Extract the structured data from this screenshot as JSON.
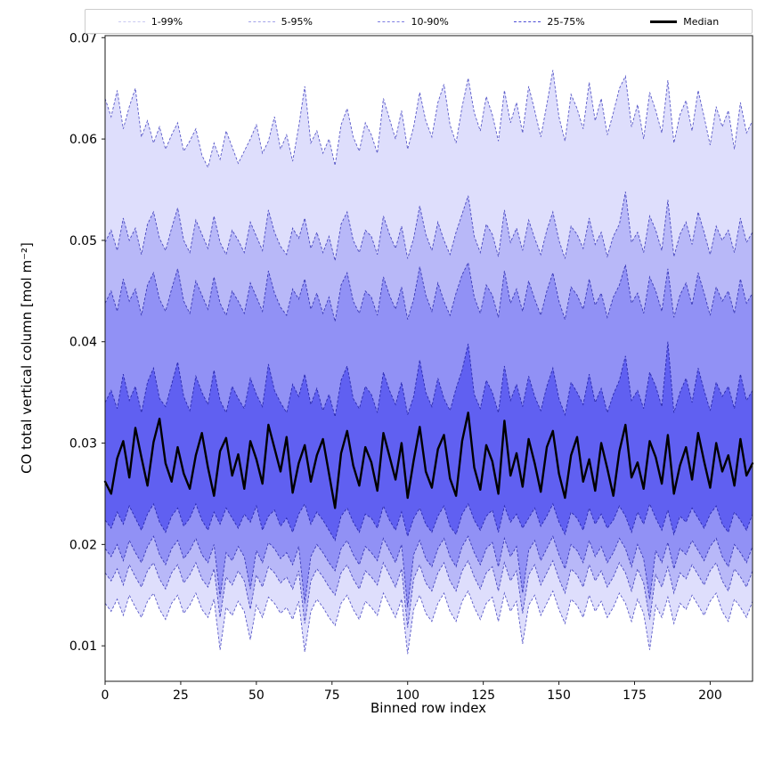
{
  "figure": {
    "background": "#ffffff"
  },
  "legend": {
    "entries": [
      {
        "label": "1-99%",
        "line_color": "#c9c9f2",
        "line_style": "dashed",
        "line_width": 1
      },
      {
        "label": "5-95%",
        "line_color": "#a3a3ea",
        "line_style": "dashed",
        "line_width": 1
      },
      {
        "label": "10-90%",
        "line_color": "#7d7de1",
        "line_style": "dashed",
        "line_width": 1
      },
      {
        "label": "25-75%",
        "line_color": "#4d4dd6",
        "line_style": "dashed",
        "line_width": 1
      },
      {
        "label": "Median",
        "line_color": "#000000",
        "line_style": "solid",
        "line_width": 3
      }
    ]
  },
  "chart_data": {
    "type": "area",
    "title": "",
    "xlabel": "Binned row index",
    "ylabel": "CO total vertical column [mol m⁻²]",
    "xlim": [
      0,
      214
    ],
    "ylim": [
      0.0065,
      0.0702
    ],
    "xticks": [
      0,
      25,
      50,
      75,
      100,
      125,
      150,
      175,
      200
    ],
    "yticks": [
      0.01,
      0.02,
      0.03,
      0.04,
      0.05,
      0.06,
      0.07
    ],
    "ytick_labels": [
      "0.01",
      "0.02",
      "0.03",
      "0.04",
      "0.05",
      "0.06",
      "0.07"
    ],
    "x_start": 0,
    "x_step": 2,
    "x_count": 108,
    "grid": false,
    "legend_position": "top",
    "band_fill_color": "48,48,238",
    "bands": [
      {
        "name": "1-99%",
        "upper": "p99",
        "lower": "p01",
        "fill_alpha": 0.16,
        "edge_color": "#5a5ac8"
      },
      {
        "name": "5-95%",
        "upper": "p95",
        "lower": "p05",
        "fill_alpha": 0.22,
        "edge_color": "#4a4ac0"
      },
      {
        "name": "10-90%",
        "upper": "p90",
        "lower": "p10",
        "fill_alpha": 0.28,
        "edge_color": "#3a3ab8"
      },
      {
        "name": "25-75%",
        "upper": "p75",
        "lower": "p25",
        "fill_alpha": 0.5,
        "edge_color": "#2a2ab0"
      }
    ],
    "median_color": "#000000",
    "median_width": 2.4,
    "series": {
      "median": [
        0.0262,
        0.025,
        0.0285,
        0.0302,
        0.0266,
        0.0315,
        0.0286,
        0.0258,
        0.0301,
        0.0324,
        0.028,
        0.0262,
        0.0296,
        0.027,
        0.0255,
        0.0288,
        0.031,
        0.0276,
        0.0248,
        0.0292,
        0.0305,
        0.0268,
        0.0289,
        0.0255,
        0.0302,
        0.0284,
        0.026,
        0.0318,
        0.0295,
        0.0272,
        0.0306,
        0.0251,
        0.028,
        0.0298,
        0.0262,
        0.0288,
        0.0304,
        0.027,
        0.0236,
        0.029,
        0.0312,
        0.0278,
        0.0258,
        0.0296,
        0.0281,
        0.0253,
        0.031,
        0.0287,
        0.0264,
        0.03,
        0.0246,
        0.0283,
        0.0316,
        0.0272,
        0.0256,
        0.0294,
        0.0308,
        0.0265,
        0.0248,
        0.0302,
        0.033,
        0.0276,
        0.0254,
        0.0298,
        0.0282,
        0.025,
        0.0322,
        0.0268,
        0.029,
        0.0257,
        0.0304,
        0.028,
        0.0252,
        0.0296,
        0.0312,
        0.027,
        0.0246,
        0.0288,
        0.0306,
        0.0262,
        0.0284,
        0.0253,
        0.03,
        0.0275,
        0.0248,
        0.0292,
        0.0318,
        0.0266,
        0.0281,
        0.0255,
        0.0302,
        0.0286,
        0.026,
        0.0308,
        0.025,
        0.0278,
        0.0296,
        0.0264,
        0.031,
        0.0282,
        0.0256,
        0.03,
        0.0272,
        0.0288,
        0.0258,
        0.0304,
        0.0268,
        0.028
      ],
      "p25": [
        0.0224,
        0.0216,
        0.0232,
        0.022,
        0.0238,
        0.0226,
        0.0214,
        0.023,
        0.024,
        0.0222,
        0.0212,
        0.0228,
        0.0236,
        0.0218,
        0.0226,
        0.024,
        0.0224,
        0.0214,
        0.0232,
        0.022,
        0.0236,
        0.0226,
        0.0216,
        0.023,
        0.0222,
        0.0238,
        0.0214,
        0.0228,
        0.0234,
        0.0218,
        0.0226,
        0.0212,
        0.023,
        0.024,
        0.022,
        0.0232,
        0.0224,
        0.0214,
        0.0204,
        0.0228,
        0.0236,
        0.0222,
        0.0212,
        0.023,
        0.0226,
        0.0216,
        0.0238,
        0.0224,
        0.0214,
        0.0232,
        0.0208,
        0.0226,
        0.0236,
        0.022,
        0.0212,
        0.0228,
        0.0238,
        0.0218,
        0.021,
        0.023,
        0.024,
        0.0224,
        0.0214,
        0.0228,
        0.0234,
        0.0212,
        0.0238,
        0.0222,
        0.023,
        0.0216,
        0.0226,
        0.0236,
        0.0218,
        0.0228,
        0.024,
        0.0222,
        0.021,
        0.0232,
        0.0226,
        0.0214,
        0.0236,
        0.022,
        0.023,
        0.0216,
        0.0224,
        0.0238,
        0.0228,
        0.0212,
        0.0232,
        0.022,
        0.024,
        0.0226,
        0.0214,
        0.0234,
        0.021,
        0.0228,
        0.0222,
        0.0236,
        0.0226,
        0.0216,
        0.023,
        0.0238,
        0.022,
        0.0212,
        0.0232,
        0.0224,
        0.0214,
        0.023
      ],
      "p75": [
        0.034,
        0.0352,
        0.0334,
        0.0368,
        0.0342,
        0.0356,
        0.033,
        0.036,
        0.0374,
        0.0344,
        0.0336,
        0.0358,
        0.038,
        0.0346,
        0.0332,
        0.0366,
        0.035,
        0.0338,
        0.0372,
        0.0342,
        0.033,
        0.0356,
        0.0344,
        0.0334,
        0.0364,
        0.0348,
        0.0336,
        0.0378,
        0.0352,
        0.034,
        0.033,
        0.0358,
        0.0346,
        0.0368,
        0.0338,
        0.0354,
        0.0332,
        0.0348,
        0.0326,
        0.0362,
        0.0376,
        0.0344,
        0.0334,
        0.0356,
        0.0348,
        0.033,
        0.037,
        0.0352,
        0.0338,
        0.036,
        0.0328,
        0.0346,
        0.0382,
        0.035,
        0.0336,
        0.0364,
        0.0344,
        0.0332,
        0.0354,
        0.0372,
        0.0398,
        0.0348,
        0.0334,
        0.0362,
        0.035,
        0.033,
        0.0376,
        0.0342,
        0.0358,
        0.0336,
        0.0366,
        0.0346,
        0.0332,
        0.0356,
        0.0374,
        0.0344,
        0.0328,
        0.036,
        0.035,
        0.0338,
        0.0368,
        0.034,
        0.0354,
        0.033,
        0.0348,
        0.0362,
        0.0386,
        0.0342,
        0.0352,
        0.0334,
        0.037,
        0.0356,
        0.0336,
        0.04,
        0.033,
        0.035,
        0.0364,
        0.034,
        0.0374,
        0.0352,
        0.0332,
        0.036,
        0.0346,
        0.0356,
        0.0334,
        0.0368,
        0.0342,
        0.0352
      ],
      "p10": [
        0.0196,
        0.0188,
        0.02,
        0.0184,
        0.0204,
        0.0192,
        0.0182,
        0.0198,
        0.0208,
        0.019,
        0.018,
        0.0196,
        0.0204,
        0.0186,
        0.0194,
        0.0206,
        0.019,
        0.0182,
        0.02,
        0.0148,
        0.0192,
        0.0184,
        0.0198,
        0.0188,
        0.0156,
        0.0194,
        0.0182,
        0.0202,
        0.0196,
        0.0186,
        0.0192,
        0.018,
        0.0198,
        0.0142,
        0.0188,
        0.02,
        0.0192,
        0.0182,
        0.0174,
        0.0196,
        0.0204,
        0.019,
        0.018,
        0.0198,
        0.0192,
        0.0184,
        0.0206,
        0.0194,
        0.0182,
        0.02,
        0.0138,
        0.019,
        0.0204,
        0.0186,
        0.0178,
        0.0196,
        0.0206,
        0.0188,
        0.0178,
        0.0198,
        0.0208,
        0.0192,
        0.018,
        0.0196,
        0.0202,
        0.0178,
        0.0206,
        0.0188,
        0.0198,
        0.0152,
        0.0194,
        0.0204,
        0.0184,
        0.0196,
        0.0208,
        0.019,
        0.0176,
        0.02,
        0.0194,
        0.0182,
        0.0204,
        0.0188,
        0.0198,
        0.0182,
        0.0192,
        0.0206,
        0.0196,
        0.0178,
        0.02,
        0.0186,
        0.0146,
        0.0194,
        0.0182,
        0.0202,
        0.0176,
        0.0196,
        0.019,
        0.0204,
        0.0194,
        0.0184,
        0.0198,
        0.0206,
        0.0188,
        0.0178,
        0.02,
        0.0192,
        0.0182,
        0.0198
      ],
      "p90": [
        0.0438,
        0.045,
        0.043,
        0.0462,
        0.044,
        0.0452,
        0.0426,
        0.0456,
        0.0468,
        0.0442,
        0.043,
        0.0452,
        0.0472,
        0.044,
        0.0428,
        0.046,
        0.0446,
        0.0432,
        0.0464,
        0.0438,
        0.0426,
        0.045,
        0.044,
        0.0428,
        0.0458,
        0.0444,
        0.043,
        0.047,
        0.0448,
        0.0434,
        0.0426,
        0.0452,
        0.0442,
        0.0462,
        0.0432,
        0.0448,
        0.0428,
        0.0444,
        0.042,
        0.0456,
        0.0468,
        0.044,
        0.0428,
        0.045,
        0.0444,
        0.0426,
        0.0464,
        0.0446,
        0.0432,
        0.0454,
        0.0422,
        0.0442,
        0.0474,
        0.0446,
        0.043,
        0.0458,
        0.044,
        0.0426,
        0.0448,
        0.0466,
        0.0478,
        0.0444,
        0.0428,
        0.0456,
        0.0446,
        0.0424,
        0.047,
        0.0438,
        0.0452,
        0.043,
        0.046,
        0.0442,
        0.0426,
        0.045,
        0.0468,
        0.044,
        0.0422,
        0.0454,
        0.0446,
        0.0432,
        0.0462,
        0.0436,
        0.0448,
        0.0424,
        0.0444,
        0.0456,
        0.0476,
        0.0438,
        0.0448,
        0.0428,
        0.0464,
        0.045,
        0.043,
        0.0472,
        0.0424,
        0.0446,
        0.0458,
        0.0436,
        0.0468,
        0.0448,
        0.0426,
        0.0454,
        0.044,
        0.045,
        0.0428,
        0.0462,
        0.0438,
        0.0448
      ],
      "p05": [
        0.0172,
        0.0164,
        0.0176,
        0.016,
        0.018,
        0.0168,
        0.0158,
        0.0174,
        0.0182,
        0.0166,
        0.0156,
        0.0172,
        0.018,
        0.0162,
        0.017,
        0.0182,
        0.0166,
        0.0158,
        0.0176,
        0.0128,
        0.0168,
        0.016,
        0.0174,
        0.0164,
        0.0136,
        0.017,
        0.0158,
        0.0178,
        0.0172,
        0.0162,
        0.0168,
        0.0156,
        0.0174,
        0.0122,
        0.0164,
        0.0176,
        0.0168,
        0.0158,
        0.015,
        0.0172,
        0.018,
        0.0166,
        0.0156,
        0.0174,
        0.0168,
        0.016,
        0.0182,
        0.017,
        0.0158,
        0.0176,
        0.0118,
        0.0166,
        0.018,
        0.0162,
        0.0154,
        0.0172,
        0.0182,
        0.0164,
        0.0154,
        0.0174,
        0.0184,
        0.0168,
        0.0156,
        0.0172,
        0.0178,
        0.0154,
        0.0182,
        0.0164,
        0.0174,
        0.0132,
        0.017,
        0.018,
        0.016,
        0.0172,
        0.0184,
        0.0166,
        0.0152,
        0.0176,
        0.017,
        0.0158,
        0.018,
        0.0164,
        0.0174,
        0.0158,
        0.0168,
        0.0182,
        0.0172,
        0.0154,
        0.0176,
        0.0162,
        0.0126,
        0.017,
        0.0158,
        0.0178,
        0.0152,
        0.0172,
        0.0166,
        0.018,
        0.017,
        0.016,
        0.0174,
        0.0182,
        0.0164,
        0.0154,
        0.0176,
        0.0168,
        0.0158,
        0.0174
      ],
      "p95": [
        0.0498,
        0.051,
        0.049,
        0.0522,
        0.05,
        0.0512,
        0.0486,
        0.0516,
        0.0528,
        0.0502,
        0.049,
        0.0512,
        0.0532,
        0.05,
        0.0488,
        0.052,
        0.0506,
        0.0492,
        0.0524,
        0.0498,
        0.0486,
        0.051,
        0.05,
        0.0488,
        0.0518,
        0.0504,
        0.049,
        0.053,
        0.0508,
        0.0494,
        0.0486,
        0.0512,
        0.0502,
        0.0522,
        0.0492,
        0.0508,
        0.0488,
        0.0504,
        0.048,
        0.0516,
        0.0528,
        0.05,
        0.0488,
        0.051,
        0.0504,
        0.0486,
        0.0524,
        0.0506,
        0.0492,
        0.0514,
        0.0482,
        0.0502,
        0.0534,
        0.0506,
        0.049,
        0.0518,
        0.05,
        0.0486,
        0.0508,
        0.0526,
        0.0544,
        0.0504,
        0.0488,
        0.0516,
        0.0506,
        0.0484,
        0.053,
        0.0498,
        0.0512,
        0.049,
        0.052,
        0.0502,
        0.0486,
        0.051,
        0.0528,
        0.05,
        0.0482,
        0.0514,
        0.0506,
        0.0492,
        0.0522,
        0.0496,
        0.0508,
        0.0484,
        0.0504,
        0.0516,
        0.0548,
        0.0498,
        0.0508,
        0.0488,
        0.0524,
        0.051,
        0.049,
        0.054,
        0.0484,
        0.0506,
        0.0518,
        0.0496,
        0.0528,
        0.0508,
        0.0486,
        0.0514,
        0.05,
        0.051,
        0.0488,
        0.0522,
        0.0498,
        0.0508
      ],
      "p01": [
        0.0142,
        0.0134,
        0.0146,
        0.013,
        0.015,
        0.0138,
        0.0128,
        0.0144,
        0.0152,
        0.0136,
        0.0126,
        0.0142,
        0.015,
        0.0132,
        0.014,
        0.0152,
        0.0136,
        0.0128,
        0.0146,
        0.0096,
        0.0138,
        0.013,
        0.0144,
        0.0134,
        0.0106,
        0.014,
        0.0128,
        0.0148,
        0.0142,
        0.0132,
        0.0138,
        0.0126,
        0.0144,
        0.0094,
        0.0134,
        0.0146,
        0.0138,
        0.0128,
        0.012,
        0.0142,
        0.015,
        0.0136,
        0.0126,
        0.0144,
        0.0138,
        0.013,
        0.0152,
        0.014,
        0.0128,
        0.0146,
        0.0092,
        0.0136,
        0.015,
        0.0132,
        0.0124,
        0.0142,
        0.0152,
        0.0134,
        0.0124,
        0.0144,
        0.0154,
        0.0138,
        0.0126,
        0.0142,
        0.0148,
        0.0124,
        0.0152,
        0.0134,
        0.0144,
        0.0102,
        0.014,
        0.015,
        0.013,
        0.0142,
        0.0154,
        0.0136,
        0.0122,
        0.0146,
        0.014,
        0.0128,
        0.015,
        0.0134,
        0.0144,
        0.0128,
        0.0138,
        0.0152,
        0.0142,
        0.0124,
        0.0146,
        0.0132,
        0.0096,
        0.014,
        0.0128,
        0.0148,
        0.0122,
        0.0142,
        0.0136,
        0.015,
        0.014,
        0.013,
        0.0144,
        0.0152,
        0.0134,
        0.0124,
        0.0146,
        0.0138,
        0.0128,
        0.0144
      ],
      "p99": [
        0.064,
        0.0622,
        0.0648,
        0.061,
        0.0632,
        0.065,
        0.0602,
        0.0618,
        0.0596,
        0.0612,
        0.059,
        0.0604,
        0.0616,
        0.0588,
        0.0598,
        0.061,
        0.0584,
        0.0572,
        0.0596,
        0.058,
        0.0608,
        0.0592,
        0.0576,
        0.0588,
        0.06,
        0.0614,
        0.0586,
        0.0598,
        0.0622,
        0.059,
        0.0604,
        0.0578,
        0.0612,
        0.0652,
        0.0596,
        0.0608,
        0.0586,
        0.06,
        0.0574,
        0.0614,
        0.063,
        0.0602,
        0.0588,
        0.0616,
        0.0604,
        0.0586,
        0.064,
        0.062,
        0.06,
        0.0628,
        0.059,
        0.0612,
        0.0646,
        0.0618,
        0.0602,
        0.0636,
        0.0654,
        0.0614,
        0.0596,
        0.0632,
        0.066,
        0.0626,
        0.0608,
        0.0642,
        0.0624,
        0.0598,
        0.0648,
        0.0616,
        0.0636,
        0.0606,
        0.0652,
        0.0628,
        0.0602,
        0.0634,
        0.0668,
        0.0622,
        0.0598,
        0.0644,
        0.063,
        0.061,
        0.0656,
        0.0618,
        0.064,
        0.0604,
        0.0626,
        0.065,
        0.0662,
        0.0612,
        0.0634,
        0.06,
        0.0646,
        0.0628,
        0.0606,
        0.0658,
        0.0596,
        0.0624,
        0.0638,
        0.0608,
        0.0648,
        0.0622,
        0.0594,
        0.0632,
        0.0612,
        0.0628,
        0.059,
        0.0636,
        0.0606,
        0.0618
      ]
    }
  }
}
